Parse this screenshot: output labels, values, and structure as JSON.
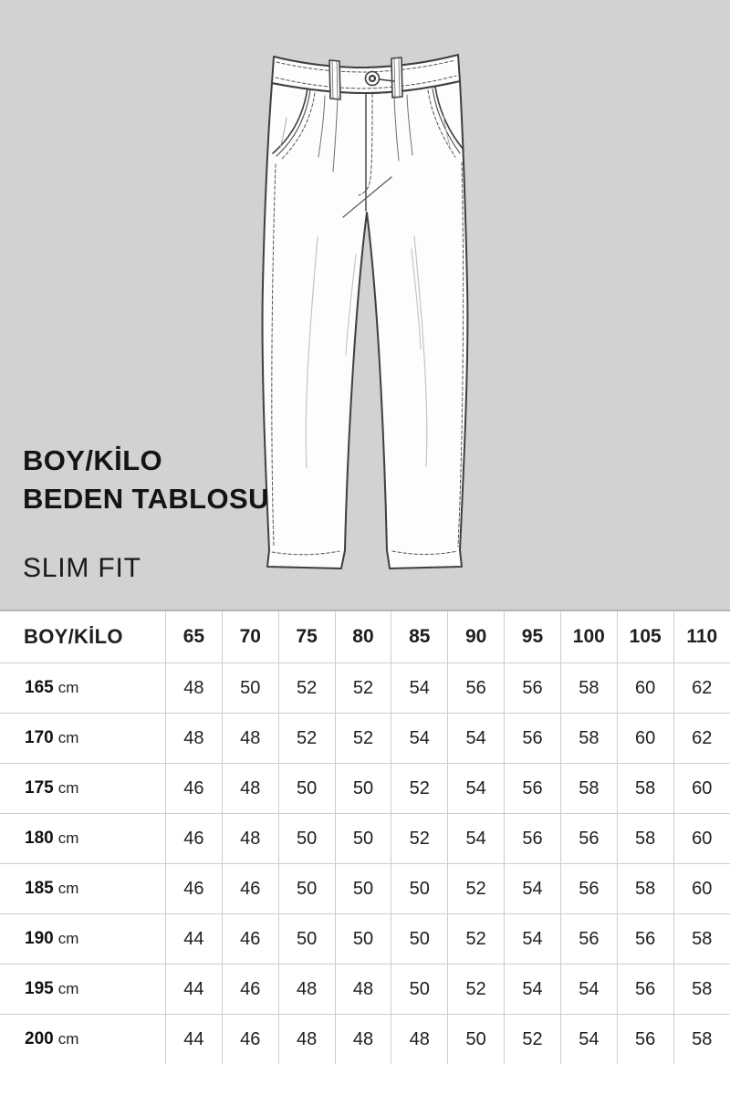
{
  "page": {
    "background_hero": "#d2d2d2",
    "background_table": "#ffffff",
    "text_color": "#141414",
    "separator_color": "#cdcdcd"
  },
  "hero": {
    "title_line1": "BOY/KİLO",
    "title_line2": "BEDEN TABLOSU",
    "fit_label": "SLIM FIT",
    "illustration": "trousers-technical-flat-sketch"
  },
  "chart_data": {
    "type": "table",
    "title": "BOY/KİLO BEDEN TABLOSU",
    "subtitle": "SLIM FIT",
    "corner_header": "BOY/KİLO",
    "weight_headers": [
      "65",
      "70",
      "75",
      "80",
      "85",
      "90",
      "95",
      "100",
      "105",
      "110"
    ],
    "rows": [
      {
        "height": "165",
        "unit": "cm",
        "sizes": [
          48,
          50,
          52,
          52,
          54,
          56,
          56,
          58,
          60,
          62
        ]
      },
      {
        "height": "170",
        "unit": "cm",
        "sizes": [
          48,
          48,
          52,
          52,
          54,
          54,
          56,
          58,
          60,
          62
        ]
      },
      {
        "height": "175",
        "unit": "cm",
        "sizes": [
          46,
          48,
          50,
          50,
          52,
          54,
          56,
          58,
          58,
          60
        ]
      },
      {
        "height": "180",
        "unit": "cm",
        "sizes": [
          46,
          48,
          50,
          50,
          52,
          54,
          56,
          56,
          58,
          60
        ]
      },
      {
        "height": "185",
        "unit": "cm",
        "sizes": [
          46,
          46,
          50,
          50,
          50,
          52,
          54,
          56,
          58,
          60
        ]
      },
      {
        "height": "190",
        "unit": "cm",
        "sizes": [
          44,
          46,
          50,
          50,
          50,
          52,
          54,
          56,
          56,
          58
        ]
      },
      {
        "height": "195",
        "unit": "cm",
        "sizes": [
          44,
          46,
          48,
          48,
          50,
          52,
          54,
          54,
          56,
          58
        ]
      },
      {
        "height": "200",
        "unit": "cm",
        "sizes": [
          44,
          46,
          48,
          48,
          48,
          50,
          52,
          54,
          56,
          58
        ]
      }
    ]
  }
}
